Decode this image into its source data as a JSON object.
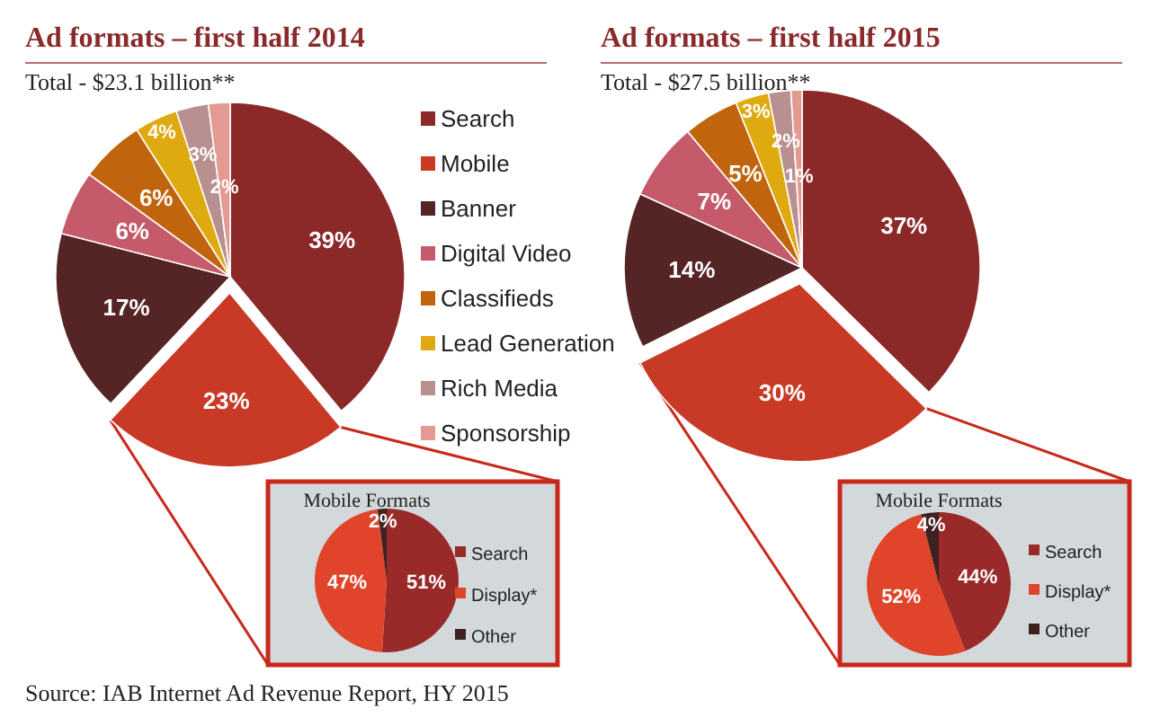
{
  "chart_data": [
    {
      "type": "pie",
      "title": "Ad formats – first half 2014",
      "subtitle": "Total - $23.1 billion**",
      "categories": [
        "Search",
        "Mobile",
        "Banner",
        "Digital Video",
        "Classifieds",
        "Lead Generation",
        "Rich Media",
        "Sponsorship"
      ],
      "values": [
        39,
        23,
        17,
        6,
        6,
        4,
        3,
        2
      ],
      "value_labels": [
        "39%",
        "23%",
        "17%",
        "6%",
        "6%",
        "4%",
        "3%",
        "2%"
      ],
      "colors": [
        "#8b2828",
        "#c83a26",
        "#552424",
        "#c45a6a",
        "#c0650e",
        "#deaa10",
        "#b89090",
        "#e29a92"
      ],
      "legend": "right",
      "annotations": [
        "Source: IAB Internet Ad Revenue Report, HY 2015"
      ]
    },
    {
      "type": "pie",
      "title": "Mobile Formats",
      "categories": [
        "Search",
        "Display*",
        "Other"
      ],
      "values": [
        51,
        47,
        2
      ],
      "value_labels": [
        "51%",
        "47%",
        "2%"
      ],
      "colors": [
        "#9a2a2a",
        "#e0442a",
        "#3e2222"
      ],
      "legend": "right"
    },
    {
      "type": "pie",
      "title": "Ad formats – first half 2015",
      "subtitle": "Total - $27.5 billion**",
      "values": [
        37,
        30,
        14,
        7,
        5,
        3,
        2,
        1
      ],
      "value_labels": [
        "37%",
        "30%",
        "14%",
        "7%",
        "5%",
        "3%",
        "2%",
        "1%"
      ],
      "colors": [
        "#8b2828",
        "#c83a26",
        "#552424",
        "#c45a6a",
        "#c0650e",
        "#deaa10",
        "#b89090",
        "#e29a92"
      ]
    },
    {
      "type": "pie",
      "title": "Mobile Formats",
      "categories": [
        "Search",
        "Display*",
        "Other"
      ],
      "values": [
        44,
        52,
        4
      ],
      "value_labels": [
        "44%",
        "52%",
        "4%"
      ],
      "colors": [
        "#9a2a2a",
        "#e0442a",
        "#3e2222"
      ],
      "legend": "right"
    }
  ]
}
